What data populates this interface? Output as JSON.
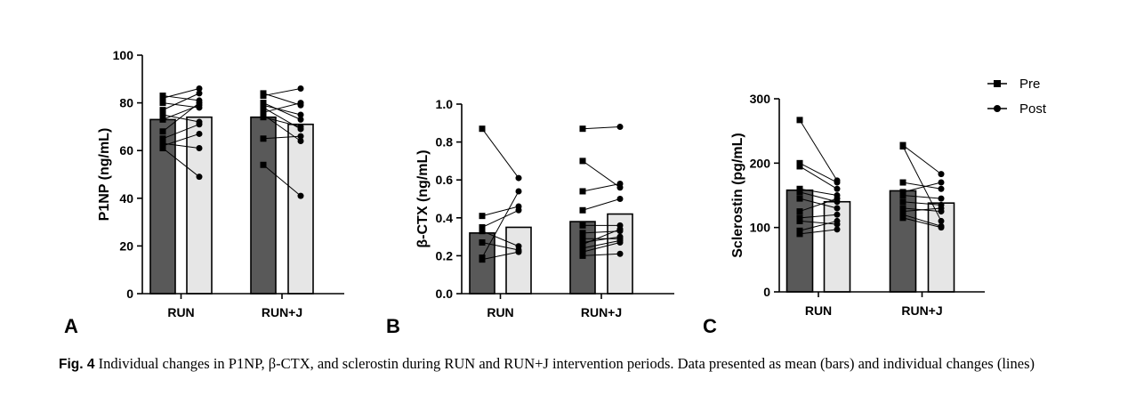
{
  "caption": {
    "label": "Fig. 4",
    "text": "Individual changes in P1NP, β-CTX, and sclerostin during RUN and RUN+J intervention periods. Data presented as mean (bars) and individual changes (lines)"
  },
  "legend": {
    "pre": "Pre",
    "post": "Post"
  },
  "colors": {
    "pre_bar": "#595959",
    "post_bar": "#e6e6e6",
    "stroke": "#000000"
  },
  "chart_data": [
    {
      "type": "bar",
      "panel": "A",
      "ylabel": "P1NP (ng/mL)",
      "ylim": [
        0,
        100
      ],
      "yticks": [
        "0",
        "20",
        "40",
        "60",
        "80",
        "100"
      ],
      "categories": [
        "RUN",
        "RUN+J"
      ],
      "series": [
        {
          "name": "Pre",
          "values": [
            73,
            74
          ]
        },
        {
          "name": "Post",
          "values": [
            74,
            71
          ]
        }
      ],
      "pairs": [
        [
          [
            83,
            81
          ],
          [
            82,
            86
          ],
          [
            80,
            78
          ],
          [
            77,
            84
          ],
          [
            75,
            72
          ],
          [
            73,
            79
          ],
          [
            68,
            80
          ],
          [
            65,
            71
          ],
          [
            63,
            61
          ],
          [
            62,
            67
          ],
          [
            61,
            49
          ]
        ],
        [
          [
            84,
            79
          ],
          [
            83,
            86
          ],
          [
            80,
            73
          ],
          [
            79,
            75
          ],
          [
            78,
            69
          ],
          [
            76,
            80
          ],
          [
            75,
            64
          ],
          [
            74,
            70
          ],
          [
            65,
            66
          ],
          [
            54,
            41
          ]
        ]
      ]
    },
    {
      "type": "bar",
      "panel": "B",
      "ylabel": "β-CTX (ng/mL)",
      "ylim": [
        0,
        1.0
      ],
      "yticks": [
        "0.0",
        "0.2",
        "0.4",
        "0.6",
        "0.8",
        "1.0"
      ],
      "categories": [
        "RUN",
        "RUN+J"
      ],
      "series": [
        {
          "name": "Pre",
          "values": [
            0.32,
            0.38
          ]
        },
        {
          "name": "Post",
          "values": [
            0.35,
            0.42
          ]
        }
      ],
      "pairs": [
        [
          [
            0.87,
            0.61
          ],
          [
            0.41,
            0.46
          ],
          [
            0.35,
            0.44
          ],
          [
            0.33,
            0.25
          ],
          [
            0.27,
            0.23
          ],
          [
            0.19,
            0.54
          ],
          [
            0.18,
            0.22
          ]
        ],
        [
          [
            0.87,
            0.88
          ],
          [
            0.7,
            0.56
          ],
          [
            0.54,
            0.58
          ],
          [
            0.44,
            0.5
          ],
          [
            0.36,
            0.36
          ],
          [
            0.32,
            0.33
          ],
          [
            0.29,
            0.29
          ],
          [
            0.27,
            0.3
          ],
          [
            0.26,
            0.34
          ],
          [
            0.24,
            0.28
          ],
          [
            0.22,
            0.27
          ],
          [
            0.2,
            0.21
          ]
        ]
      ]
    },
    {
      "type": "bar",
      "panel": "C",
      "ylabel": "Sclerostin (pg/mL)",
      "ylim": [
        0,
        300
      ],
      "yticks": [
        "0",
        "100",
        "200",
        "300"
      ],
      "categories": [
        "RUN",
        "RUN+J"
      ],
      "series": [
        {
          "name": "Pre",
          "values": [
            158,
            157
          ]
        },
        {
          "name": "Post",
          "values": [
            140,
            138
          ]
        }
      ],
      "pairs": [
        [
          [
            267,
            173
          ],
          [
            200,
            170
          ],
          [
            195,
            160
          ],
          [
            160,
            150
          ],
          [
            155,
            140
          ],
          [
            145,
            130
          ],
          [
            125,
            145
          ],
          [
            115,
            120
          ],
          [
            110,
            105
          ],
          [
            95,
            110
          ],
          [
            90,
            97
          ]
        ],
        [
          [
            228,
            183
          ],
          [
            226,
            110
          ],
          [
            170,
            160
          ],
          [
            155,
            170
          ],
          [
            150,
            145
          ],
          [
            140,
            135
          ],
          [
            130,
            125
          ],
          [
            125,
            130
          ],
          [
            120,
            102
          ],
          [
            115,
            100
          ]
        ]
      ]
    }
  ]
}
